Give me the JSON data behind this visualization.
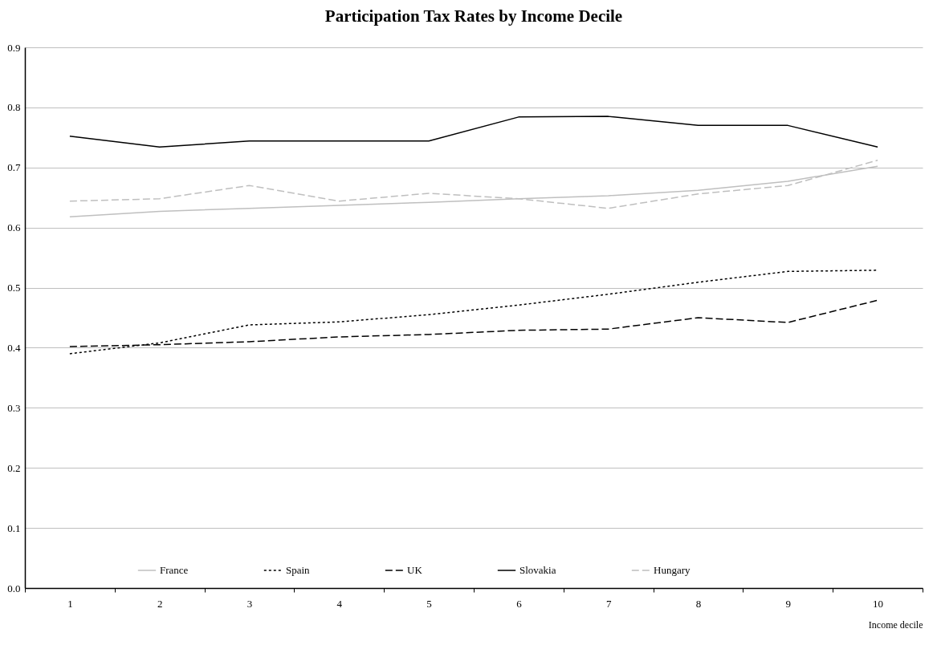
{
  "chart_data": {
    "type": "line",
    "title": "Participation Tax Rates by Income Decile",
    "xlabel": "Income decile",
    "categories": [
      "1",
      "2",
      "3",
      "4",
      "5",
      "6",
      "7",
      "8",
      "9",
      "10"
    ],
    "series": [
      {
        "name": "France",
        "color": "#bfbfbf",
        "line_style": "solid",
        "values": [
          0.618,
          0.627,
          0.632,
          0.637,
          0.642,
          0.648,
          0.653,
          0.662,
          0.677,
          0.702
        ]
      },
      {
        "name": "Spain",
        "color": "#000000",
        "line_style": "dotted",
        "values": [
          0.39,
          0.408,
          0.438,
          0.443,
          0.455,
          0.471,
          0.489,
          0.509,
          0.527,
          0.529
        ]
      },
      {
        "name": "UK",
        "color": "#000000",
        "line_style": "dashed",
        "values": [
          0.402,
          0.405,
          0.41,
          0.418,
          0.422,
          0.429,
          0.431,
          0.45,
          0.442,
          0.479
        ]
      },
      {
        "name": "Slovakia",
        "color": "#000000",
        "line_style": "solid",
        "values": [
          0.752,
          0.734,
          0.744,
          0.744,
          0.744,
          0.784,
          0.785,
          0.77,
          0.77,
          0.734
        ]
      },
      {
        "name": "Hungary",
        "color": "#bfbfbf",
        "line_style": "dashed",
        "values": [
          0.644,
          0.648,
          0.67,
          0.644,
          0.657,
          0.648,
          0.632,
          0.656,
          0.67,
          0.712
        ]
      }
    ],
    "ylim": [
      0,
      0.9
    ],
    "yticks": [
      {
        "value": 0,
        "label": "0.0"
      },
      0.1,
      0.2,
      0.3,
      0.4,
      0.5,
      0.6,
      0.7,
      0.8,
      0.9
    ],
    "grid": "y",
    "legend": "bottom",
    "marker": "none"
  }
}
